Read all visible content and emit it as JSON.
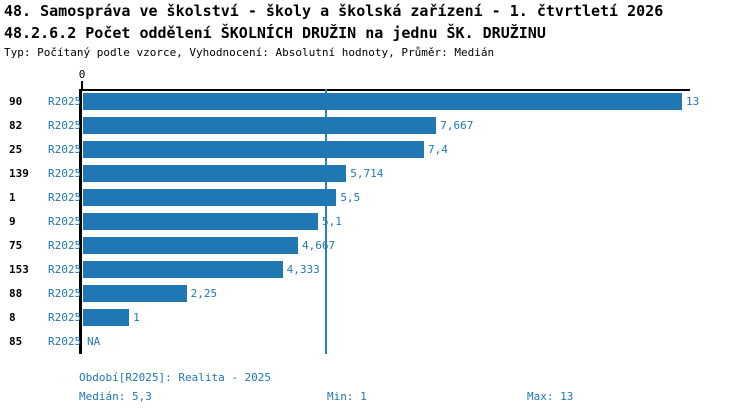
{
  "header": {
    "title1": "48. Samospráva ve školství - školy a školská zařízení - 1. čtvrtletí 2026",
    "title2": "48.2.6.2 Počet oddělení ŠKOLNÍCH DRUŽIN na jednu ŠK. DRUŽINU",
    "meta": "Typ: Počítaný podle vzorce, Vyhodnocení: Absolutní hodnoty, Průměr: Medián"
  },
  "chart_data": {
    "type": "bar",
    "orientation": "horizontal",
    "categories": [
      "90",
      "82",
      "25",
      "139",
      "1",
      "9",
      "75",
      "153",
      "88",
      "8",
      "85"
    ],
    "series_label": "R2025",
    "values": [
      13,
      7.667,
      7.4,
      5.714,
      5.5,
      5.1,
      4.667,
      4.333,
      2.25,
      1,
      null
    ],
    "value_labels": [
      "13",
      "7,667",
      "7,4",
      "5,714",
      "5,5",
      "5,1",
      "4,667",
      "4,333",
      "2,25",
      "1",
      "NA"
    ],
    "xlim": [
      0,
      13
    ],
    "axis_zero_label": "0",
    "median_value": 5.3,
    "bar_color": "#1f77b4",
    "median_line_color": "#2e80bd",
    "grid": "off",
    "legend": "none"
  },
  "footer": {
    "period": "Období[R2025]: Realita - 2025",
    "median": "Medián: 5,3",
    "min": "Min: 1",
    "max": "Max: 13"
  }
}
